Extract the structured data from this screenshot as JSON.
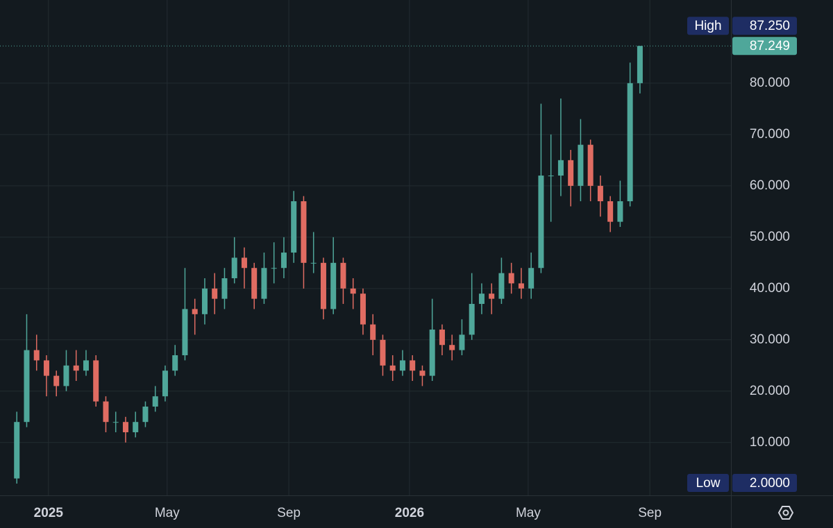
{
  "chart_data": {
    "type": "candlestick",
    "x": [
      -32,
      -22,
      -12,
      -2,
      8,
      18,
      28,
      38,
      48,
      58,
      68,
      78,
      88,
      98,
      108,
      118,
      128,
      138,
      148,
      158,
      168,
      178,
      188,
      198,
      208,
      218,
      228,
      238,
      248,
      258,
      268,
      278,
      288,
      298,
      308,
      318,
      328,
      338,
      348,
      358,
      368,
      378,
      388,
      398,
      408,
      418,
      428,
      438,
      448,
      458,
      468,
      478,
      488,
      498,
      508,
      518,
      528,
      538,
      548,
      558,
      568,
      578,
      588,
      598
    ],
    "open": [
      3,
      14,
      28,
      26,
      23,
      21,
      25,
      24,
      26,
      18,
      14,
      14,
      12,
      14,
      17,
      19,
      24,
      27,
      36,
      35,
      40,
      38,
      42,
      46,
      44,
      38,
      44,
      44,
      47,
      57,
      45,
      45,
      36,
      45,
      40,
      39,
      33,
      30,
      25,
      24,
      26,
      24,
      23,
      32,
      29,
      28,
      31,
      37,
      39,
      38,
      43,
      41,
      40,
      44,
      62,
      62,
      65,
      60,
      68,
      60,
      57,
      53,
      57,
      80
    ],
    "high": [
      16,
      35,
      31,
      27,
      24,
      28,
      28,
      28,
      27,
      19,
      16,
      15,
      16,
      18,
      21,
      25,
      29,
      44,
      38,
      42,
      43,
      44,
      50,
      48,
      45,
      47,
      49,
      50,
      59,
      58,
      51,
      46,
      50,
      46,
      42,
      40,
      35,
      31,
      27,
      28,
      27,
      25,
      38,
      33,
      31,
      34,
      43,
      41,
      41,
      46,
      45,
      44,
      47,
      76,
      70,
      77,
      67,
      73,
      69,
      62,
      58,
      61,
      84,
      87.25
    ],
    "low": [
      2,
      13,
      24,
      19,
      19,
      20,
      22,
      23,
      17,
      12,
      12,
      10,
      11,
      13,
      16,
      18,
      23,
      26,
      31,
      33,
      35,
      36,
      41,
      40,
      36,
      37,
      41,
      42,
      45,
      40,
      43,
      34,
      35,
      37,
      36,
      31,
      27,
      23,
      22,
      23,
      22,
      21,
      22,
      27,
      26,
      27,
      30,
      35,
      35,
      37,
      39,
      38,
      38,
      43,
      53,
      58,
      56,
      57,
      57,
      54,
      51,
      52,
      56,
      78
    ],
    "close": [
      14,
      28,
      26,
      23,
      21,
      25,
      24,
      26,
      18,
      14,
      14,
      12,
      14,
      17,
      19,
      24,
      27,
      36,
      35,
      40,
      38,
      42,
      46,
      44,
      38,
      44,
      44,
      47,
      57,
      45,
      45,
      36,
      45,
      40,
      39,
      33,
      30,
      25,
      24,
      26,
      24,
      23,
      32,
      29,
      28,
      31,
      37,
      39,
      38,
      43,
      41,
      40,
      44,
      62,
      62,
      65,
      60,
      68,
      60,
      57,
      53,
      57,
      80,
      87.249
    ],
    "up_color": "#4fa79a",
    "down_color": "#e06c62",
    "xlim": [
      -49,
      690
    ],
    "xticks": [
      {
        "value": 0,
        "label": "2025"
      },
      {
        "value": 120,
        "label": "May"
      },
      {
        "value": 243,
        "label": "Sep"
      },
      {
        "value": 365,
        "label": "2026"
      },
      {
        "value": 485,
        "label": "May"
      },
      {
        "value": 608,
        "label": "Sep"
      }
    ],
    "ylim": [
      -0.3,
      96.2
    ],
    "yticks": [
      {
        "value": 10,
        "label": "10.000"
      },
      {
        "value": 20,
        "label": "20.000"
      },
      {
        "value": 30,
        "label": "30.000"
      },
      {
        "value": 40,
        "label": "40.000"
      },
      {
        "value": 50,
        "label": "50.000"
      },
      {
        "value": 60,
        "label": "60.000"
      },
      {
        "value": 70,
        "label": "70.000"
      },
      {
        "value": 80,
        "label": "80.000"
      }
    ],
    "grid": true,
    "last_price": 87.249,
    "high_marker": {
      "name": "High",
      "value": 87.25,
      "value_label": "87.250"
    },
    "low_marker": {
      "name": "Low",
      "value": 2,
      "value_label": "2.0000"
    }
  }
}
